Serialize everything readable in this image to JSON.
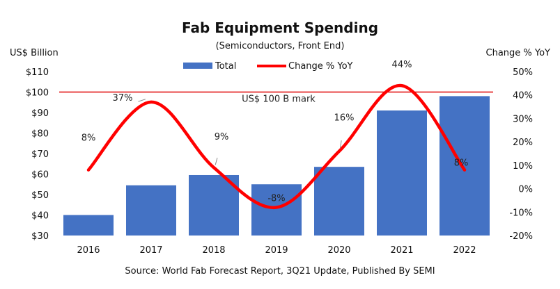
{
  "chart_data": {
    "type": "bar",
    "title": "Fab Equipment Spending",
    "subtitle": "(Semiconductors, Front End)",
    "ylabel_left": "US$ Billion",
    "ylabel_right": "Change % YoY",
    "source": "Source: World Fab Forecast Report, 3Q21 Update, Published By SEMI",
    "categories": [
      "2016",
      "2017",
      "2018",
      "2019",
      "2020",
      "2021",
      "2022"
    ],
    "series": [
      {
        "name": "Total",
        "type": "bar",
        "axis": "left",
        "color": "#4472C4",
        "values": [
          40,
          54.5,
          59.5,
          55,
          63.5,
          91,
          98
        ]
      },
      {
        "name": "Change % YoY",
        "type": "line",
        "axis": "right",
        "color": "#FF0000",
        "values": [
          8,
          37,
          9,
          -8,
          16,
          44,
          8
        ],
        "labels": [
          "8%",
          "37%",
          "9%",
          "-8%",
          "16%",
          "44%",
          "8%"
        ]
      }
    ],
    "ylim_left": [
      30,
      110
    ],
    "yticks_left": [
      "$30",
      "$40",
      "$50",
      "$60",
      "$70",
      "$80",
      "$90",
      "$100",
      "$110"
    ],
    "ylim_right": [
      -20,
      50
    ],
    "yticks_right": [
      "-20%",
      "-10%",
      "0%",
      "10%",
      "20%",
      "30%",
      "40%",
      "50%"
    ],
    "reference_line": {
      "value": 100,
      "axis": "left",
      "label": "US$ 100 B mark",
      "color": "#E00000"
    },
    "legend_position": "top-center",
    "grid": false
  }
}
